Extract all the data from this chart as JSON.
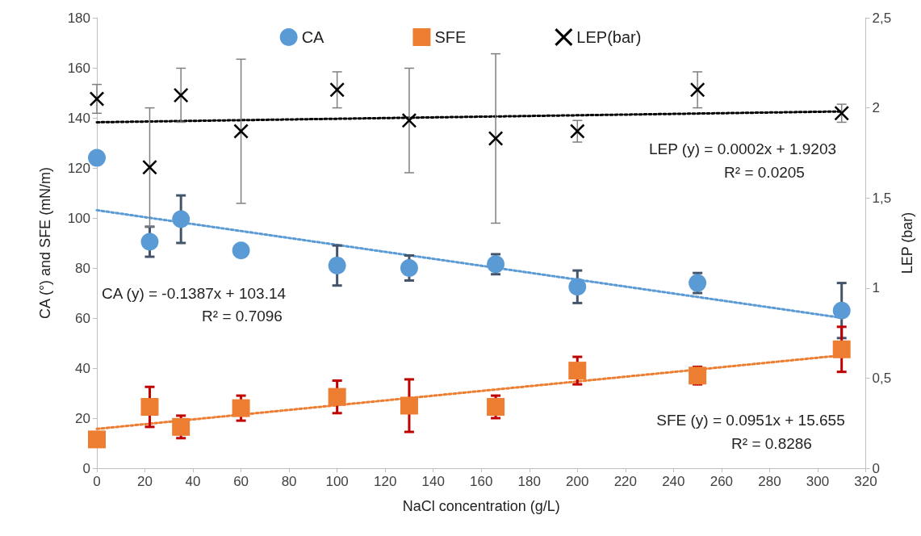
{
  "chart_data": {
    "type": "scatter",
    "xlabel": "NaCl concentration (g/L)",
    "ylabel": "CA (°) and SFE (mN/m)",
    "y2label": "LEP (bar)",
    "xlim": [
      0,
      320
    ],
    "xticks": [
      0,
      20,
      40,
      60,
      80,
      100,
      120,
      140,
      160,
      180,
      200,
      220,
      240,
      260,
      280,
      300,
      320
    ],
    "ylim": [
      0,
      180
    ],
    "yticks": [
      0,
      20,
      40,
      60,
      80,
      100,
      120,
      140,
      160,
      180
    ],
    "y2lim": [
      0,
      2.5
    ],
    "y2ticks": [
      {
        "value": 0,
        "label": "0"
      },
      {
        "value": 0.5,
        "label": "0,5"
      },
      {
        "value": 1,
        "label": "1"
      },
      {
        "value": 1.5,
        "label": "1,5"
      },
      {
        "value": 2,
        "label": "2"
      },
      {
        "value": 2.5,
        "label": "2,5"
      }
    ],
    "grid": false,
    "legend": "top",
    "series": [
      {
        "name": "CA",
        "color": "#5b9bd5",
        "marker": "circle",
        "x": [
          0,
          22,
          35,
          60,
          100,
          130,
          166,
          200,
          250,
          310
        ],
        "values": [
          124,
          90.5,
          99.5,
          87,
          81,
          80,
          81.5,
          72.5,
          74,
          63
        ],
        "errors": [
          null,
          6,
          9.5,
          null,
          8,
          5,
          4,
          6.5,
          4,
          11
        ]
      },
      {
        "name": "SFE",
        "color": "#ed7d31",
        "marker": "square",
        "x": [
          0,
          22,
          35,
          60,
          100,
          130,
          166,
          200,
          250,
          310
        ],
        "values": [
          11.5,
          24.5,
          16.5,
          24,
          28.5,
          25,
          24.5,
          39,
          37,
          47.5
        ],
        "errors": [
          null,
          8,
          4.5,
          5,
          6.5,
          10.5,
          4.5,
          5.5,
          3.5,
          9
        ]
      },
      {
        "name": "LEP(bar)",
        "color": "#000000",
        "marker": "cross",
        "axis": "y2",
        "x": [
          0,
          22,
          35,
          60,
          100,
          130,
          166,
          200,
          250,
          310
        ],
        "values": [
          2.05,
          1.67,
          2.07,
          1.87,
          2.1,
          1.93,
          1.83,
          1.87,
          2.1,
          1.97
        ],
        "errors": [
          0.08,
          0.33,
          0.15,
          0.4,
          0.1,
          0.29,
          0.47,
          0.06,
          0.1,
          0.05
        ]
      },
      {
        "type": "line",
        "color": "#5b9bd5",
        "line_style": "dotted",
        "marker": "none",
        "x": [
          0,
          310
        ],
        "values": [
          103.1,
          60.1
        ]
      },
      {
        "type": "line",
        "color": "#ed7d31",
        "line_style": "dotted",
        "marker": "none",
        "x": [
          0,
          310
        ],
        "values": [
          15.7,
          45.1
        ]
      },
      {
        "type": "line",
        "color": "#000000",
        "line_style": "dotted",
        "marker": "none",
        "axis": "y2",
        "x": [
          0,
          310
        ],
        "values": [
          1.92,
          1.98
        ]
      }
    ],
    "annotations": [
      "LEP (y) = 0.0002x + 1.9203",
      "R² = 0.0205",
      "CA (y) = -0.1387x + 103.14",
      "R² = 0.7096",
      "SFE (y) = 0.0951x + 15.655",
      "R² = 0.8286"
    ]
  }
}
